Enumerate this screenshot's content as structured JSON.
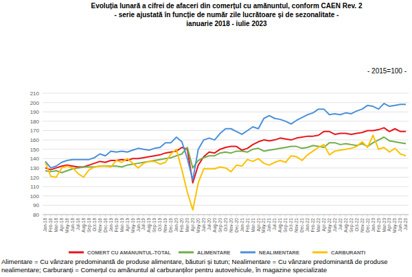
{
  "chart_data": {
    "type": "line",
    "title": [
      "Evoluția lunară a cifrei de afaceri din comerțul cu amănuntul, conform CAEN Rev. 2",
      "- serie ajustată în funcție de număr zile lucrătoare și de sezonalitate -",
      "ianuarie 2018 - iulie 2023"
    ],
    "subtitle": "- 2015=100 -",
    "note": "Alimentare = Cu vânzare predominantă de produse alimentare, băuturi și tutun; Nealimentare = Cu vânzare predominantă de produse nealimentare; Carburanți = Comerțul cu amănuntul al carburanților pentru autovehicule, în magazine specializate",
    "categories": [
      "Jan-18",
      "Feb-18",
      "Mar-18",
      "Apr-18",
      "May-18",
      "Jun-18",
      "Jul-18",
      "Aug-18",
      "Sep-18",
      "Oct-18",
      "Nov-18",
      "Dec-18",
      "Jan-19",
      "Feb-19",
      "Mar-19",
      "Apr-19",
      "May-19",
      "Jun-19",
      "Jul-19",
      "Aug-19",
      "Sep-19",
      "Oct-19",
      "Nov-19",
      "Dec-19",
      "Jan-20",
      "Feb-20",
      "Mar-20",
      "Apr-20",
      "May-20",
      "Jun-20",
      "Jul-20",
      "Aug-20",
      "Sep-20",
      "Oct-20",
      "Nov-20",
      "Dec-20",
      "Jan-21",
      "Feb-21",
      "Mar-21",
      "Apr-21",
      "May-21",
      "Jun-21",
      "Jul-21",
      "Aug-21",
      "Sep-21",
      "Oct-21",
      "Nov-21",
      "Dec-21",
      "Jan-22",
      "Feb-22",
      "Mar-22",
      "Apr-22",
      "May-22",
      "Jun-22",
      "Jul-22",
      "Aug-22",
      "Sep-22",
      "Oct-22",
      "Nov-22",
      "Dec-22",
      "Jan-23",
      "Feb-23",
      "Mar-23",
      "Apr-23",
      "May-23",
      "Jun-23",
      "Jul-23"
    ],
    "series": [
      {
        "name": "COMERT CU AMANUNTUL-TOTAL",
        "color": "#e8131b",
        "values": [
          130,
          128,
          130,
          132,
          133,
          132,
          131,
          131,
          133,
          135,
          137,
          136,
          138,
          138,
          139,
          138,
          140,
          140,
          141,
          142,
          143,
          144,
          146,
          147,
          148,
          152,
          150,
          114,
          133,
          142,
          147,
          146,
          150,
          152,
          153,
          153,
          149,
          151,
          155,
          158,
          160,
          159,
          160,
          162,
          161,
          160,
          162,
          163,
          164,
          164,
          165,
          169,
          169,
          166,
          167,
          167,
          166,
          167,
          168,
          170,
          170,
          171,
          173,
          169,
          172,
          169,
          169
        ]
      },
      {
        "name": "ALIMENTARE",
        "color": "#70ad47",
        "values": [
          127,
          126,
          127,
          125,
          127,
          129,
          130,
          131,
          131,
          131,
          132,
          132,
          132,
          132,
          131,
          133,
          134,
          135,
          136,
          137,
          138,
          139,
          140,
          141,
          143,
          145,
          152,
          130,
          138,
          141,
          143,
          143,
          146,
          147,
          146,
          148,
          148,
          147,
          150,
          151,
          148,
          149,
          150,
          151,
          152,
          153,
          153,
          151,
          152,
          154,
          153,
          152,
          157,
          157,
          155,
          156,
          155,
          154,
          156,
          153,
          157,
          160,
          163,
          159,
          158,
          157,
          156
        ]
      },
      {
        "name": "NEALIMENTARE",
        "color": "#4a90d9",
        "values": [
          137,
          130,
          132,
          136,
          138,
          139,
          139,
          139,
          139,
          141,
          145,
          143,
          148,
          147,
          148,
          147,
          149,
          151,
          150,
          149,
          151,
          152,
          157,
          157,
          163,
          158,
          140,
          117,
          150,
          160,
          162,
          160,
          167,
          172,
          172,
          169,
          166,
          170,
          174,
          172,
          183,
          186,
          183,
          182,
          180,
          177,
          181,
          184,
          187,
          189,
          193,
          193,
          187,
          188,
          187,
          189,
          188,
          191,
          193,
          197,
          196,
          193,
          199,
          196,
          197,
          198,
          198
        ]
      },
      {
        "name": "CARBURANTI",
        "color": "#ffc000",
        "values": [
          136,
          121,
          120,
          130,
          132,
          130,
          124,
          120,
          128,
          131,
          132,
          132,
          131,
          138,
          136,
          140,
          135,
          130,
          135,
          137,
          137,
          134,
          136,
          145,
          150,
          128,
          104,
          85,
          114,
          129,
          129,
          129,
          131,
          130,
          126,
          133,
          132,
          139,
          137,
          140,
          135,
          133,
          136,
          138,
          136,
          143,
          142,
          138,
          144,
          148,
          152,
          155,
          144,
          148,
          149,
          150,
          151,
          153,
          158,
          152,
          165,
          150,
          152,
          147,
          151,
          145,
          143
        ]
      }
    ],
    "ylim": [
      80,
      210
    ],
    "yticks": [
      80,
      90,
      100,
      110,
      120,
      130,
      140,
      150,
      160,
      170,
      180,
      190,
      200,
      210
    ],
    "grid": true,
    "legend": "bottom"
  }
}
